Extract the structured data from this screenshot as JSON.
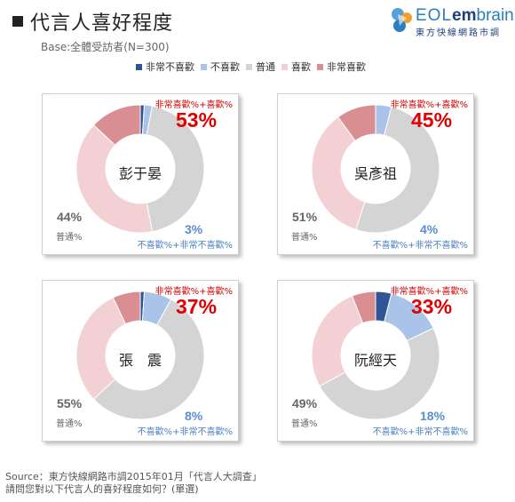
{
  "header": {
    "title": "代言人喜好程度",
    "base": "Base:全體受訪者(N=300)"
  },
  "logo": {
    "word_a": "EOL",
    "word_b": "em",
    "word_c": "brain",
    "subtitle": "東方快線網路市調"
  },
  "legend": [
    {
      "label": "非常不喜歡",
      "color": "#2f5597"
    },
    {
      "label": "不喜歡",
      "color": "#a9c4e8"
    },
    {
      "label": "普通",
      "color": "#d4d4d4"
    },
    {
      "label": "喜歡",
      "color": "#f2d0d3"
    },
    {
      "label": "非常喜歡",
      "color": "#d98e92"
    }
  ],
  "labels": {
    "like_sum": "非常喜歡%+喜歡%",
    "dislike_sum": "不喜歡%+非常不喜歡%",
    "neutral": "普通%"
  },
  "chart_data": [
    {
      "type": "pie",
      "name": "彭于晏",
      "like_label": "53%",
      "neutral_label": "44%",
      "dislike_label": "3%",
      "slices": {
        "very_dislike": 1,
        "dislike": 2,
        "neutral": 44,
        "like": 40,
        "very_like": 13
      }
    },
    {
      "type": "pie",
      "name": "吳彥祖",
      "like_label": "45%",
      "neutral_label": "51%",
      "dislike_label": "4%",
      "slices": {
        "very_dislike": 0,
        "dislike": 4,
        "neutral": 51,
        "like": 35,
        "very_like": 10
      }
    },
    {
      "type": "pie",
      "name": "張　震",
      "like_label": "37%",
      "neutral_label": "55%",
      "dislike_label": "8%",
      "slices": {
        "very_dislike": 1,
        "dislike": 7,
        "neutral": 55,
        "like": 30,
        "very_like": 7
      }
    },
    {
      "type": "pie",
      "name": "阮經天",
      "like_label": "33%",
      "neutral_label": "49%",
      "dislike_label": "18%",
      "slices": {
        "very_dislike": 4,
        "dislike": 14,
        "neutral": 49,
        "like": 27,
        "very_like": 6
      }
    }
  ],
  "footer": {
    "source": "Source：東方快線網路市調2015年01月「代言人大調查」",
    "question": "請問您對以下代言人的喜好程度如何？(單選)"
  }
}
